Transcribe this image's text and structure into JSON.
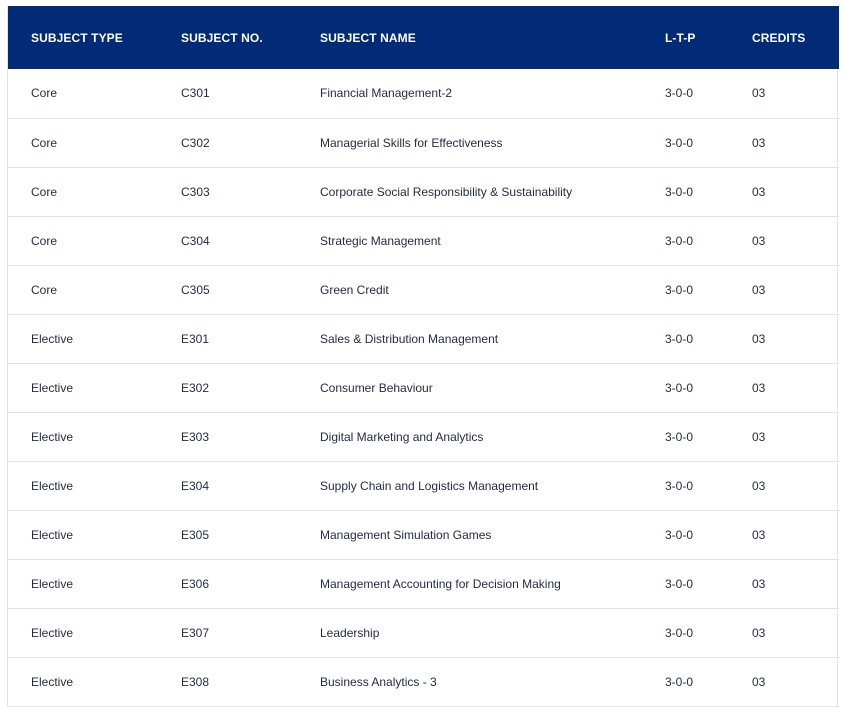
{
  "table": {
    "headers": [
      "SUBJECT TYPE",
      "SUBJECT NO.",
      "SUBJECT NAME",
      "L-T-P",
      "CREDITS"
    ],
    "rows": [
      [
        "Core",
        "C301",
        "Financial Management-2",
        "3-0-0",
        "03"
      ],
      [
        "Core",
        "C302",
        "Managerial Skills for Effectiveness",
        "3-0-0",
        "03"
      ],
      [
        "Core",
        "C303",
        "Corporate Social Responsibility & Sustainability",
        "3-0-0",
        "03"
      ],
      [
        "Core",
        "C304",
        "Strategic Management",
        "3-0-0",
        "03"
      ],
      [
        "Core",
        "C305",
        "Green Credit",
        "3-0-0",
        "03"
      ],
      [
        "Elective",
        "E301",
        "Sales & Distribution Management",
        "3-0-0",
        "03"
      ],
      [
        "Elective",
        "E302",
        "Consumer Behaviour",
        "3-0-0",
        "03"
      ],
      [
        "Elective",
        "E303",
        "Digital Marketing and Analytics",
        "3-0-0",
        "03"
      ],
      [
        "Elective",
        "E304",
        "Supply Chain and Logistics Management",
        "3-0-0",
        "03"
      ],
      [
        "Elective",
        "E305",
        "Management Simulation Games",
        "3-0-0",
        "03"
      ],
      [
        "Elective",
        "E306",
        "Management Accounting for Decision Making",
        "3-0-0",
        "03"
      ],
      [
        "Elective",
        "E307",
        "Leadership",
        "3-0-0",
        "03"
      ],
      [
        "Elective",
        "E308",
        "Business Analytics - 3",
        "3-0-0",
        "03"
      ]
    ]
  },
  "colors": {
    "header_bg": "#012a77",
    "header_text": "#ffffff",
    "body_text": "#1f2a44",
    "row_divider": "#e3e3e3"
  }
}
